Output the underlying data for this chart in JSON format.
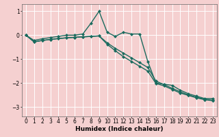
{
  "xlabel": "Humidex (Indice chaleur)",
  "bg_color": "#f5d0d0",
  "plot_bg_color": "#f5d0d0",
  "grid_color": "#ffffff",
  "line_color": "#1a6b5e",
  "line1": {
    "x": [
      0,
      1,
      2,
      3,
      4,
      5,
      6,
      7,
      8,
      9,
      10,
      11,
      12,
      13,
      14,
      15,
      16,
      17,
      18,
      19,
      20,
      21,
      22,
      23
    ],
    "y": [
      0.0,
      -0.22,
      -0.15,
      -0.1,
      -0.05,
      0.0,
      0.0,
      0.05,
      0.5,
      1.0,
      0.12,
      -0.05,
      0.12,
      0.05,
      0.05,
      -1.1,
      -2.0,
      -2.05,
      -2.1,
      -2.3,
      -2.45,
      -2.55,
      -2.65,
      -2.65
    ]
  },
  "line2": {
    "x": [
      0,
      1,
      2,
      3,
      4,
      5,
      6,
      7,
      8,
      9,
      10,
      11,
      12,
      13,
      14,
      15,
      16,
      17,
      18,
      19,
      20,
      21,
      22,
      23
    ],
    "y": [
      0.0,
      -0.28,
      -0.22,
      -0.18,
      -0.14,
      -0.11,
      -0.09,
      -0.07,
      -0.05,
      -0.03,
      -0.32,
      -0.55,
      -0.75,
      -0.95,
      -1.15,
      -1.35,
      -1.92,
      -2.07,
      -2.22,
      -2.37,
      -2.5,
      -2.6,
      -2.68,
      -2.72
    ]
  },
  "line3": {
    "x": [
      0,
      1,
      2,
      3,
      4,
      5,
      6,
      7,
      8,
      9,
      10,
      11,
      12,
      13,
      14,
      15,
      16,
      17,
      18,
      19,
      20,
      21,
      22,
      23
    ],
    "y": [
      0.0,
      -0.28,
      -0.22,
      -0.18,
      -0.14,
      -0.11,
      -0.09,
      -0.07,
      -0.05,
      -0.03,
      -0.38,
      -0.65,
      -0.9,
      -1.1,
      -1.3,
      -1.5,
      -2.02,
      -2.12,
      -2.27,
      -2.42,
      -2.52,
      -2.62,
      -2.7,
      -2.74
    ]
  },
  "xlim": [
    -0.5,
    23.5
  ],
  "ylim": [
    -3.4,
    1.3
  ],
  "yticks": [
    1,
    0,
    -1,
    -2,
    -3
  ],
  "xticks": [
    0,
    1,
    2,
    3,
    4,
    5,
    6,
    7,
    8,
    9,
    10,
    11,
    12,
    13,
    14,
    15,
    16,
    17,
    18,
    19,
    20,
    21,
    22,
    23
  ],
  "markersize": 2.5,
  "linewidth": 1.0,
  "fontsize_xlabel": 6.5,
  "fontsize_ticks": 5.5
}
